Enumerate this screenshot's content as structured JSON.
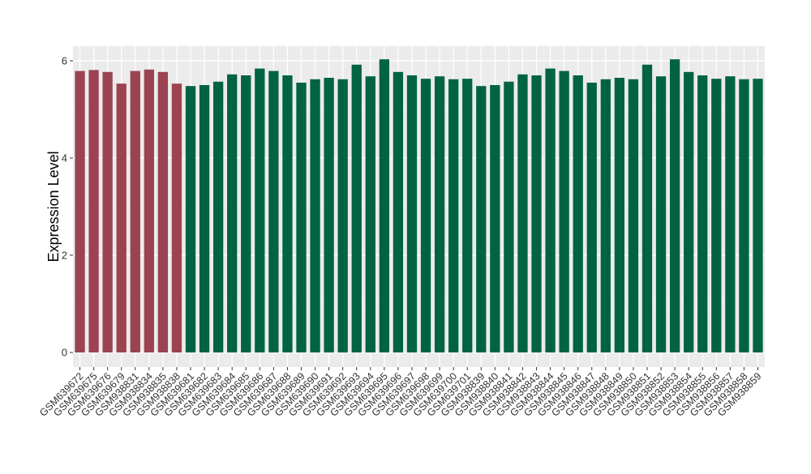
{
  "chart_data": {
    "type": "bar",
    "title": "",
    "xlabel": "",
    "ylabel": "Expression Level",
    "ylim": [
      -0.3,
      6.3
    ],
    "yticks": [
      0,
      2,
      4,
      6
    ],
    "grid": true,
    "legend": "none",
    "colors": {
      "group_a": "#9B4350",
      "group_b": "#006341",
      "panel_bg": "#EBEBEB",
      "grid": "#FFFFFF"
    },
    "categories": [
      "GSM639672",
      "GSM639675",
      "GSM639676",
      "GSM639679",
      "GSM938831",
      "GSM938834",
      "GSM938835",
      "GSM938838",
      "GSM639681",
      "GSM639682",
      "GSM639683",
      "GSM639684",
      "GSM639685",
      "GSM639686",
      "GSM639687",
      "GSM639688",
      "GSM639689",
      "GSM639690",
      "GSM639691",
      "GSM639692",
      "GSM639693",
      "GSM639694",
      "GSM639695",
      "GSM639696",
      "GSM639697",
      "GSM639698",
      "GSM639699",
      "GSM639700",
      "GSM639701",
      "GSM938839",
      "GSM938840",
      "GSM938841",
      "GSM938842",
      "GSM938843",
      "GSM938844",
      "GSM938845",
      "GSM938846",
      "GSM938847",
      "GSM938848",
      "GSM938849",
      "GSM938850",
      "GSM938851",
      "GSM938852",
      "GSM938853",
      "GSM938854",
      "GSM938855",
      "GSM938856",
      "GSM938857",
      "GSM938858",
      "GSM938859"
    ],
    "values": [
      5.79,
      5.81,
      5.77,
      5.53,
      5.79,
      5.82,
      5.77,
      5.53,
      5.48,
      5.5,
      5.57,
      5.72,
      5.7,
      5.84,
      5.79,
      5.7,
      5.55,
      5.62,
      5.65,
      5.62,
      5.92,
      5.68,
      6.03,
      5.77,
      5.7,
      5.63,
      5.68,
      5.62,
      5.63,
      5.48,
      5.5,
      5.57,
      5.72,
      5.7,
      5.84,
      5.79,
      5.7,
      5.55,
      5.62,
      5.65,
      5.62,
      5.92,
      5.68,
      6.03,
      5.77,
      5.7,
      5.63,
      5.68,
      5.62,
      5.63
    ],
    "groups": [
      "a",
      "a",
      "a",
      "a",
      "a",
      "a",
      "a",
      "a",
      "b",
      "b",
      "b",
      "b",
      "b",
      "b",
      "b",
      "b",
      "b",
      "b",
      "b",
      "b",
      "b",
      "b",
      "b",
      "b",
      "b",
      "b",
      "b",
      "b",
      "b",
      "b",
      "b",
      "b",
      "b",
      "b",
      "b",
      "b",
      "b",
      "b",
      "b",
      "b",
      "b",
      "b",
      "b",
      "b",
      "b",
      "b",
      "b",
      "b",
      "b",
      "b"
    ]
  }
}
